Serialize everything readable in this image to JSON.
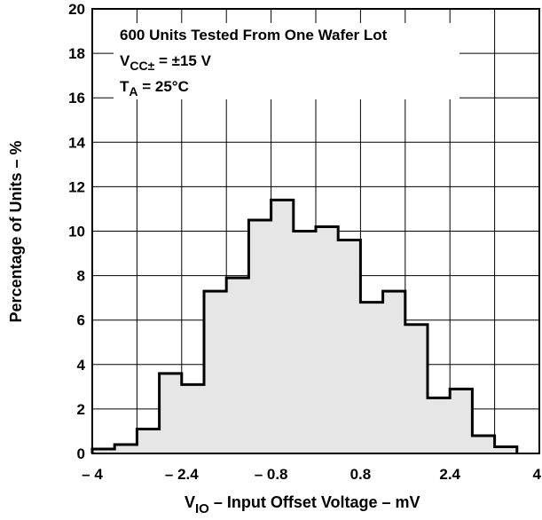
{
  "chart_data": {
    "type": "bar",
    "bin_edges": [
      -4.0,
      -3.6,
      -3.2,
      -2.8,
      -2.4,
      -2.0,
      -1.6,
      -1.2,
      -0.8,
      -0.4,
      0.0,
      0.4,
      0.8,
      1.2,
      1.6,
      2.0,
      2.4,
      2.8,
      3.2,
      3.6
    ],
    "values": [
      0.2,
      0.4,
      1.1,
      3.6,
      3.1,
      7.3,
      7.9,
      10.5,
      11.4,
      10.0,
      10.2,
      9.6,
      6.8,
      7.3,
      5.8,
      2.5,
      2.9,
      0.8,
      0.3
    ],
    "xlim": [
      -4,
      4
    ],
    "ylim": [
      0,
      20
    ],
    "x_ticks": [
      -4,
      -2.4,
      -0.8,
      0.8,
      2.4,
      4
    ],
    "x_tick_labels": [
      "– 4",
      "– 2.4",
      "– 0.8",
      "0.8",
      "2.4",
      "4"
    ],
    "y_ticks": [
      0,
      2,
      4,
      6,
      8,
      10,
      12,
      14,
      16,
      18,
      20
    ],
    "y_tick_labels": [
      "0",
      "2",
      "4",
      "6",
      "8",
      "10",
      "12",
      "14",
      "16",
      "18",
      "20"
    ],
    "xlabel": {
      "prefix": "V",
      "subscript": "IO",
      "suffix": " – Input Offset Voltage – mV"
    },
    "ylabel": "Percentage of Units – %",
    "grid": true,
    "annotations": {
      "line1": "600 Units Tested From One Wafer Lot",
      "line2": {
        "prefix": "V",
        "subscript": "CC±",
        "suffix": " = ±15 V"
      },
      "line3": {
        "prefix": "T",
        "subscript": "A",
        "suffix": " = 25°C"
      }
    },
    "colors": {
      "fill": "#e6e6e6",
      "outline": "#000000",
      "grid": "#000000"
    }
  }
}
